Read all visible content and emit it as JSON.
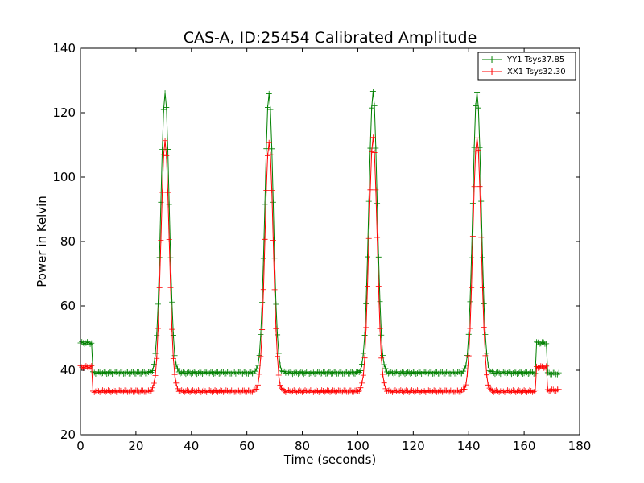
{
  "chart_data": {
    "type": "line",
    "title": "CAS-A, ID:25454 Calibrated Amplitude",
    "xlabel": "Time (seconds)",
    "ylabel": "Power in Kelvin",
    "xlim": [
      0,
      180
    ],
    "ylim": [
      20,
      140
    ],
    "xticks": [
      "0",
      "20",
      "40",
      "60",
      "80",
      "100",
      "120",
      "140",
      "160",
      "180"
    ],
    "yticks": [
      "20",
      "40",
      "60",
      "80",
      "100",
      "120",
      "140"
    ],
    "grid": false,
    "legend_position": "top-right",
    "sample_interval_s": 0.5,
    "series": [
      {
        "name": "YY1 Tsys37.85",
        "color": "#008000",
        "marker": "+",
        "segments": [
          {
            "x0": 0,
            "x1": 4.5,
            "level": 48.5
          },
          {
            "x0": 4.5,
            "x1": 164.5,
            "level": 39.2
          },
          {
            "x0": 164.5,
            "x1": 168.5,
            "level": 48.5
          },
          {
            "x0": 168.5,
            "x1": 172.5,
            "level": 39
          }
        ],
        "peaks": [
          {
            "center": 30.5,
            "height": 126
          },
          {
            "center": 68,
            "height": 126
          },
          {
            "center": 105.5,
            "height": 126.5
          },
          {
            "center": 143,
            "height": 126.5
          }
        ]
      },
      {
        "name": "XX1 Tsys32.30",
        "color": "#ff0000",
        "marker": "+",
        "segments": [
          {
            "x0": 0,
            "x1": 4.5,
            "level": 41
          },
          {
            "x0": 4.5,
            "x1": 164.5,
            "level": 33.5
          },
          {
            "x0": 164.5,
            "x1": 168.5,
            "level": 41
          },
          {
            "x0": 168.5,
            "x1": 172.5,
            "level": 33.8
          }
        ],
        "peaks": [
          {
            "center": 30.5,
            "height": 111
          },
          {
            "center": 68,
            "height": 111
          },
          {
            "center": 105.5,
            "height": 112
          },
          {
            "center": 143,
            "height": 112.5
          }
        ]
      }
    ]
  }
}
